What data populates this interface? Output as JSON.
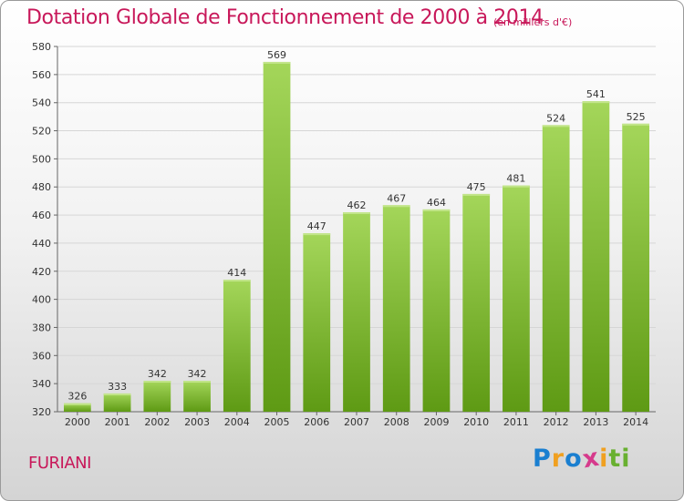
{
  "header": {
    "title": "Dotation Globale de Fonctionnement de 2000 à 2014",
    "unit": "(en milliers d'€)"
  },
  "footer": {
    "commune": "FURIANI",
    "logo_letters": [
      "P",
      "r",
      "o",
      "x",
      "i",
      "t",
      "i"
    ],
    "logo_colors": [
      "#1a7fd0",
      "#f0a020",
      "#1a7fd0",
      "#d63a8c",
      "#f0a020",
      "#68b030",
      "#68b030"
    ]
  },
  "colors": {
    "bar_light": "#a4d65a",
    "bar_dark": "#5e9a14",
    "accent": "#c8185a"
  },
  "chart_data": {
    "type": "bar",
    "title": "Dotation Globale de Fonctionnement de 2000 à 2014",
    "subtitle": "(en milliers d'€)",
    "xlabel": "",
    "ylabel": "",
    "categories": [
      "2000",
      "2001",
      "2002",
      "2003",
      "2004",
      "2005",
      "2006",
      "2007",
      "2008",
      "2009",
      "2010",
      "2011",
      "2012",
      "2013",
      "2014"
    ],
    "values": [
      326,
      333,
      342,
      342,
      414,
      569,
      447,
      462,
      467,
      464,
      475,
      481,
      524,
      541,
      525
    ],
    "ylim": [
      320,
      580
    ],
    "yticks": [
      320,
      340,
      360,
      380,
      400,
      420,
      440,
      460,
      480,
      500,
      520,
      540,
      560,
      580
    ],
    "grid": true,
    "legend": "none"
  }
}
